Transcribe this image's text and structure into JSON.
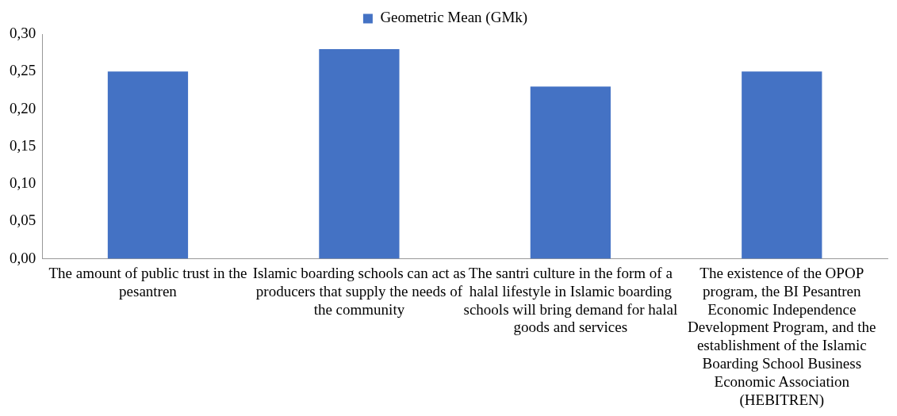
{
  "chart_data": {
    "type": "bar",
    "categories": [
      "The amount of public trust in the pesantren",
      "Islamic boarding schools can act as producers that supply the needs of the community",
      "The santri culture in the form of a halal lifestyle in Islamic boarding schools will bring demand for halal goods and services",
      "The existence of the OPOP program, the BI Pesantren Economic Independence Development Program, and the establishment of the Islamic Boarding School Business Economic Association (HEBITREN)"
    ],
    "series": [
      {
        "name": "Geometric Mean (GMk)",
        "color": "#4472c4",
        "values": [
          0.25,
          0.28,
          0.23,
          0.25
        ]
      }
    ],
    "ylim": [
      0,
      0.3
    ],
    "yticks": [
      {
        "value": 0,
        "label": "0,00"
      },
      {
        "value": 0.05,
        "label": "0,05"
      },
      {
        "value": 0.1,
        "label": "0,10"
      },
      {
        "value": 0.15,
        "label": "0,15"
      },
      {
        "value": 0.2,
        "label": "0,20"
      },
      {
        "value": 0.25,
        "label": "0,25"
      },
      {
        "value": 0.3,
        "label": "0,30"
      }
    ],
    "grid": false,
    "legend": "top"
  }
}
